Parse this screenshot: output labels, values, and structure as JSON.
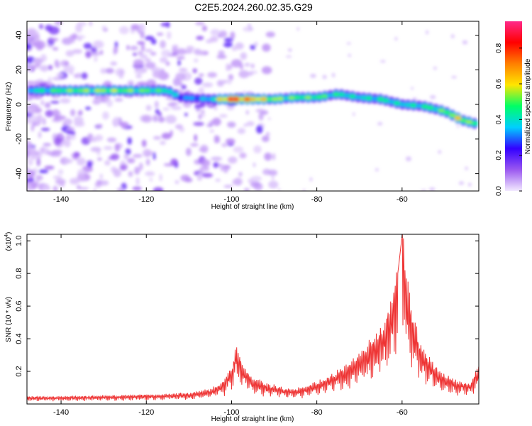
{
  "title": "C2E5.2024.260.02.35.G29",
  "chart_data": [
    {
      "type": "heatmap",
      "xlabel": "Height of straight line (km)",
      "ylabel": "Frequency (Hz)",
      "xlim": [
        -148,
        -42
      ],
      "ylim": [
        -50,
        48
      ],
      "xticks": [
        -140,
        -120,
        -100,
        -80,
        -60
      ],
      "yticks": [
        -40,
        -20,
        0,
        20,
        40
      ],
      "colorbar": {
        "label": "Normalized spectral amplitude",
        "range": [
          0,
          0.95
        ],
        "ticks": [
          "0.0",
          "0.2",
          "0.4",
          "0.6",
          "0.8"
        ],
        "tick_values": [
          0,
          0.2,
          0.4,
          0.6,
          0.8
        ],
        "colors": [
          "#f3eaff",
          "#9b59f0",
          "#3300ff",
          "#00cfff",
          "#00ff66",
          "#ffe600",
          "#ff7f00",
          "#ff0000",
          "#ff2a8a"
        ]
      },
      "ridge": {
        "x": [
          -147,
          -140,
          -130,
          -120,
          -115,
          -112,
          -105,
          -100,
          -95,
          -90,
          -85,
          -80,
          -75,
          -70,
          -65,
          -60,
          -55,
          -50,
          -46,
          -43
        ],
        "frequency": [
          8,
          8,
          8,
          8,
          8,
          4,
          3,
          3,
          3,
          3,
          4,
          4,
          6,
          4,
          3,
          0,
          -1,
          -4,
          -9,
          -11
        ],
        "amplitude": [
          0.45,
          0.55,
          0.6,
          0.55,
          0.5,
          0.35,
          0.4,
          0.95,
          0.75,
          0.6,
          0.55,
          0.55,
          0.5,
          0.45,
          0.5,
          0.45,
          0.5,
          0.55,
          0.7,
          0.5
        ]
      }
    },
    {
      "type": "line",
      "xlabel": "Height of straight line (km)",
      "ylabel": "SNR (10 * v/v)",
      "yscale_label": "(x10",
      "yscale_exp": "4",
      "xlim": [
        -148,
        -42
      ],
      "ylim": [
        0,
        1.04
      ],
      "xticks": [
        -140,
        -120,
        -100,
        -80,
        -60
      ],
      "yticks": [
        0.2,
        0.4,
        0.6,
        0.8,
        1.0
      ],
      "series": [
        {
          "color": "#ee3333",
          "x": [
            -148,
            -140,
            -130,
            -120,
            -110,
            -105,
            -102,
            -100,
            -99,
            -97,
            -95,
            -92,
            -90,
            -87,
            -85,
            -82,
            -80,
            -77,
            -75,
            -72,
            -70,
            -68,
            -66,
            -64,
            -62,
            -61,
            -60,
            -59,
            -58,
            -57,
            -56,
            -54,
            -52,
            -50,
            -48,
            -46,
            -44,
            -42
          ],
          "values": [
            0.04,
            0.04,
            0.045,
            0.05,
            0.06,
            0.08,
            0.12,
            0.2,
            0.3,
            0.2,
            0.14,
            0.11,
            0.1,
            0.08,
            0.08,
            0.1,
            0.12,
            0.15,
            0.18,
            0.22,
            0.28,
            0.32,
            0.38,
            0.45,
            0.6,
            0.8,
            1.03,
            0.7,
            0.55,
            0.45,
            0.35,
            0.25,
            0.2,
            0.16,
            0.13,
            0.12,
            0.11,
            0.2
          ]
        }
      ]
    }
  ]
}
